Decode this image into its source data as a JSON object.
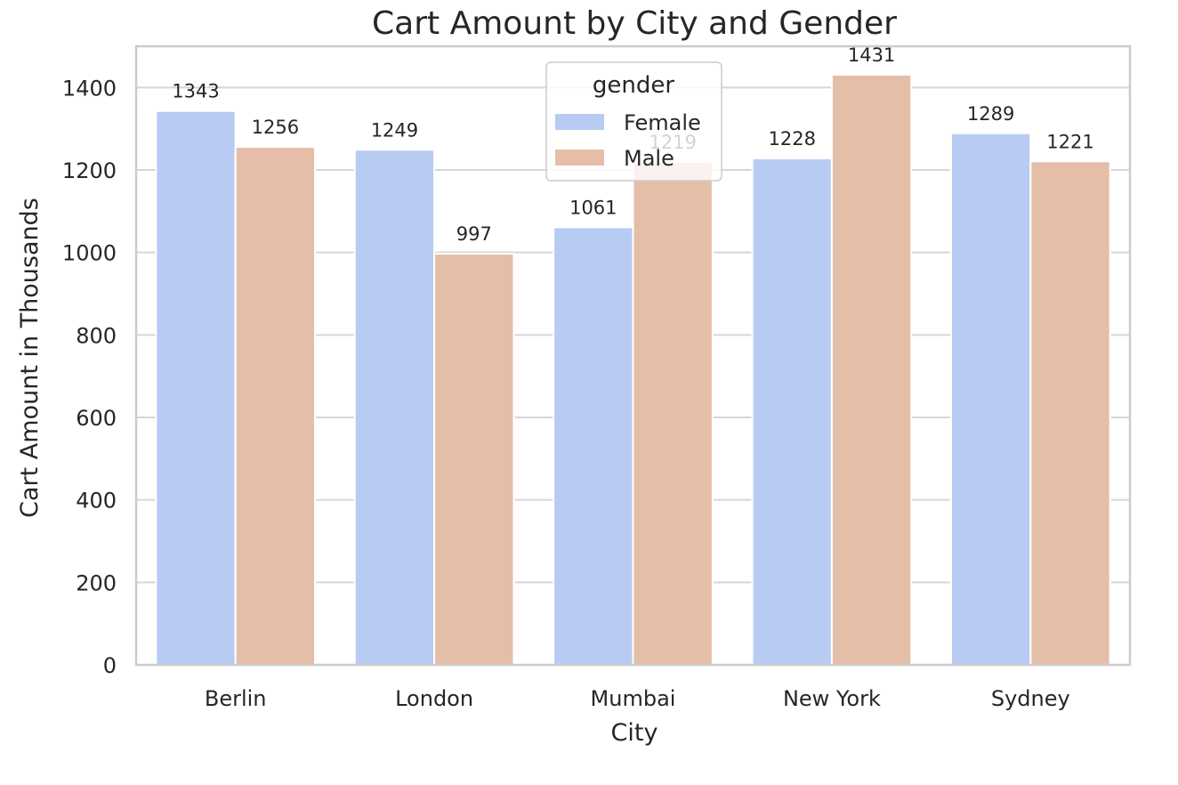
{
  "chart_data": {
    "type": "bar",
    "title": "Cart Amount by City and Gender",
    "xlabel": "City",
    "ylabel": "Cart Amount in Thousands",
    "categories": [
      "Berlin",
      "London",
      "Mumbai",
      "New York",
      "Sydney"
    ],
    "series": [
      {
        "name": "Female",
        "color": "#b8cbf2",
        "values": [
          1343,
          1249,
          1061,
          1228,
          1289
        ]
      },
      {
        "name": "Male",
        "color": "#e5bea8",
        "values": [
          1256,
          997,
          1219,
          1431,
          1221
        ]
      }
    ],
    "ylim": [
      0,
      1500
    ],
    "yticks": [
      0,
      200,
      400,
      600,
      800,
      1000,
      1200,
      1400
    ],
    "grid": true,
    "legend": {
      "title": "gender",
      "position": "upper-center"
    },
    "colors": {
      "axes_edge": "#cccccc",
      "grid": "#d6d6d6",
      "text": "#262626"
    }
  }
}
